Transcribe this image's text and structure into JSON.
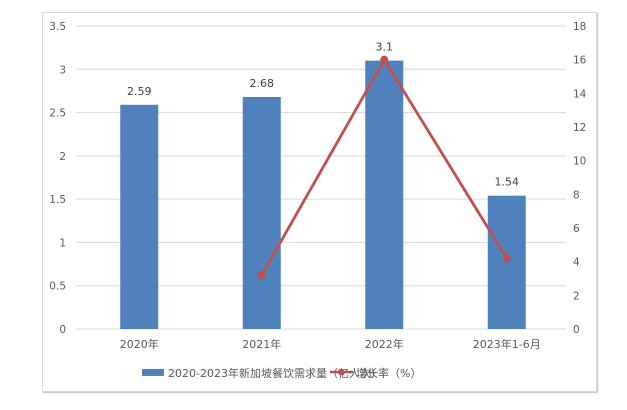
{
  "chart_data": {
    "type": "bar+line",
    "title": "",
    "categories": [
      "2020年",
      "2021年",
      "2022年",
      "2023年1-6月"
    ],
    "series": [
      {
        "name": "2020-2023年新加坡餐饮需求量（亿人次）",
        "type": "bar",
        "axis": "left",
        "values": [
          2.59,
          2.68,
          3.1,
          1.54
        ],
        "labels": [
          "2.59",
          "2.68",
          "3.1",
          "1.54"
        ],
        "color": "#4F81BD"
      },
      {
        "name": "增长率（%）",
        "type": "line",
        "axis": "right",
        "values": [
          null,
          3.2,
          16.0,
          4.2
        ],
        "color": "#C0504D"
      }
    ],
    "left_axis": {
      "ylim": [
        0,
        3.5
      ],
      "ticks": [
        "0",
        "0.5",
        "1",
        "1.5",
        "2",
        "2.5",
        "3",
        "3.5"
      ]
    },
    "right_axis": {
      "ylim": [
        0,
        18
      ],
      "ticks": [
        "0",
        "2",
        "4",
        "6",
        "8",
        "10",
        "12",
        "14",
        "16",
        "18"
      ]
    },
    "grid": true,
    "legend_position": "bottom"
  }
}
